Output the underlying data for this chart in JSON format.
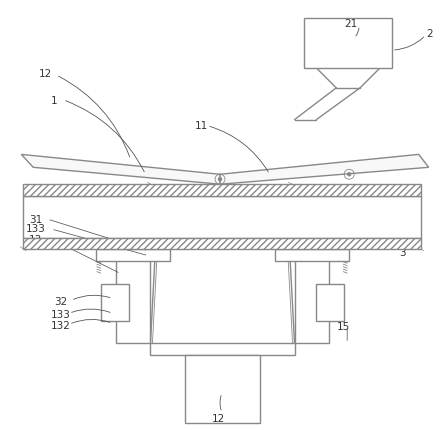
{
  "bg_color": "#ffffff",
  "line_color": "#888888",
  "lw_main": 1.0,
  "lw_thin": 0.6,
  "lw_hatch": 0.5,
  "figsize": [
    4.43,
    4.31
  ],
  "dpi": 100
}
